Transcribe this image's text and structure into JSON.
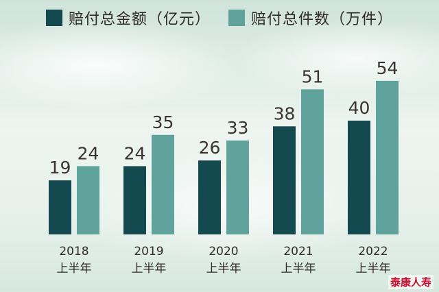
{
  "legend": [
    {
      "label": "赔付总金额（亿元）",
      "color": "#144a4f"
    },
    {
      "label": "赔付总件数（万件）",
      "color": "#5fa39c"
    }
  ],
  "watermark": "泰康人寿",
  "chart_data": {
    "type": "bar",
    "categories": [
      [
        "2018",
        "上半年"
      ],
      [
        "2019",
        "上半年"
      ],
      [
        "2020",
        "上半年"
      ],
      [
        "2021",
        "上半年"
      ],
      [
        "2022",
        "上半年"
      ]
    ],
    "series": [
      {
        "name": "赔付总金额（亿元）",
        "values": [
          19,
          24,
          26,
          38,
          40
        ],
        "color": "#144a4f"
      },
      {
        "name": "赔付总件数（万件）",
        "values": [
          24,
          35,
          33,
          51,
          54
        ],
        "color": "#5fa39c"
      }
    ],
    "ylim": [
      0,
      60
    ],
    "grid": false,
    "legend_position": "top"
  }
}
